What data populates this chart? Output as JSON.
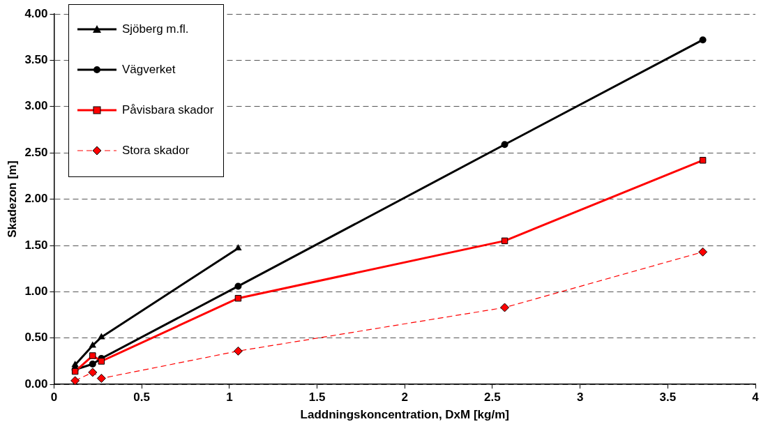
{
  "chart_data": {
    "type": "line",
    "xlabel": "Laddningskoncentration, DxM [kg/m]",
    "ylabel": "Skadezon [m]",
    "xlim": [
      0,
      4
    ],
    "xticks": [
      0,
      0.5,
      1,
      1.5,
      2,
      2.5,
      3,
      3.5,
      4
    ],
    "ylim": [
      0,
      4
    ],
    "yticks": [
      {
        "value": 0,
        "label": "0.00"
      },
      {
        "value": 0.5,
        "label": "0.50"
      },
      {
        "value": 1,
        "label": "1.00"
      },
      {
        "value": 1.5,
        "label": "1.50"
      },
      {
        "value": 2,
        "label": "2.00"
      },
      {
        "value": 2.5,
        "label": "2.50"
      },
      {
        "value": 3,
        "label": "3.00"
      },
      {
        "value": 3.5,
        "label": "3.50"
      },
      {
        "value": 4,
        "label": "4.00"
      }
    ],
    "grid": "y",
    "legend": "top left",
    "series": [
      {
        "name": "Sjöberg m.fl.",
        "color": "#000000",
        "marker": "triangle",
        "line_style": "solid",
        "x": [
          0.12,
          0.22,
          0.27,
          1.05
        ],
        "values": [
          0.21,
          0.42,
          0.51,
          1.47
        ]
      },
      {
        "name": "Vägverket",
        "color": "#000000",
        "marker": "circle",
        "line_style": "solid",
        "x": [
          0.12,
          0.22,
          0.27,
          1.05,
          2.57,
          3.7
        ],
        "values": [
          0.16,
          0.22,
          0.28,
          1.06,
          2.59,
          3.72
        ]
      },
      {
        "name": "Påvisbara skador",
        "color": "#ff0000",
        "marker": "square",
        "line_style": "solid",
        "x": [
          0.12,
          0.22,
          0.27,
          1.05,
          2.57,
          3.7
        ],
        "values": [
          0.14,
          0.31,
          0.25,
          0.93,
          1.55,
          2.42
        ]
      },
      {
        "name": "Stora skador",
        "color": "#ff0000",
        "marker": "diamond",
        "line_style": "dashed",
        "x": [
          0.12,
          0.22,
          0.27,
          1.05,
          2.57,
          3.7
        ],
        "values": [
          0.04,
          0.13,
          0.065,
          0.36,
          0.83,
          1.43
        ]
      }
    ]
  }
}
